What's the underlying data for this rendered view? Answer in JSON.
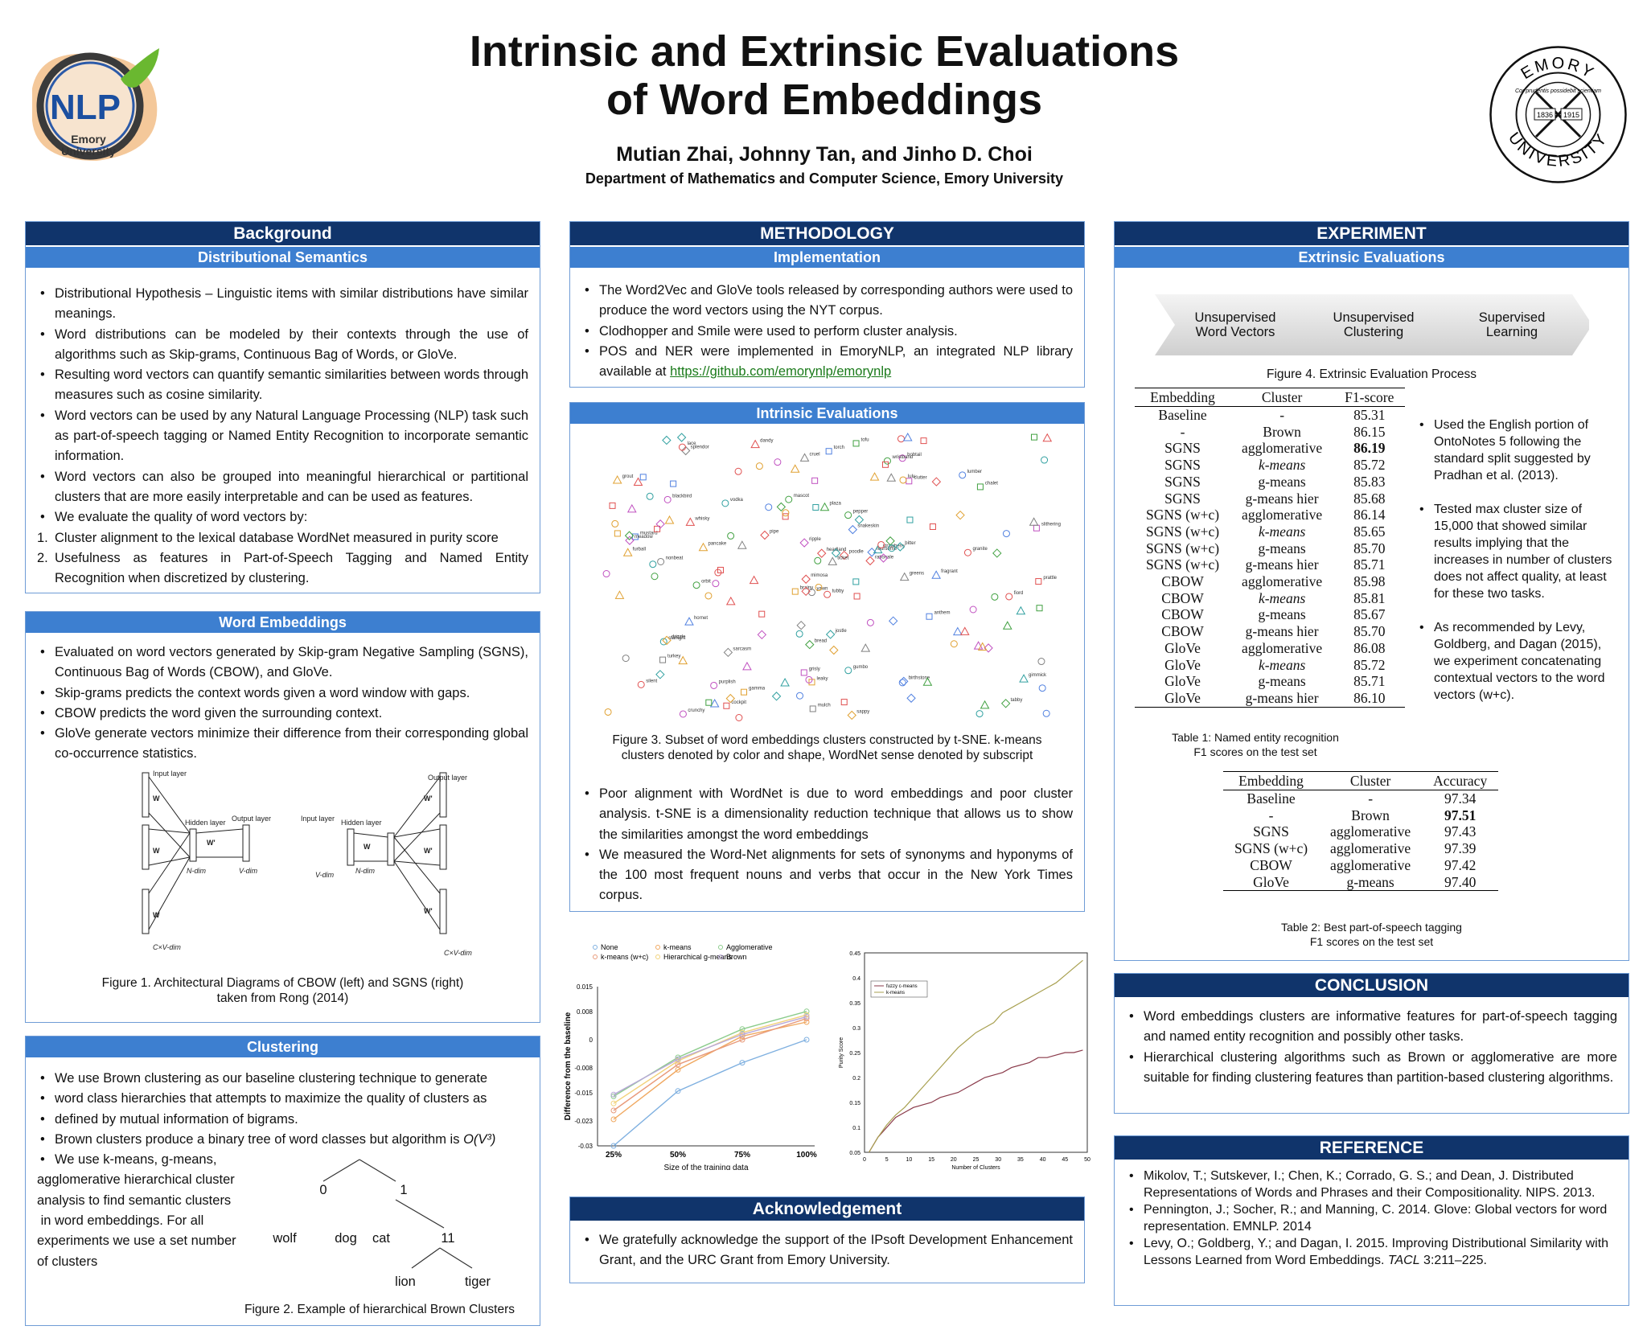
{
  "title_line1": "Intrinsic and Extrinsic Evaluations",
  "title_line2": "of Word Embeddings",
  "authors": "Mutian Zhai, Johnny Tan, and Jinho D. Choi",
  "department": "Department of Mathematics and Computer Science, Emory University",
  "logo_nlp": {
    "text": "NLP",
    "sub1": "Emory",
    "sub2": "University"
  },
  "logo_emory": {
    "top": "EMORY",
    "bottom": "UNIVERSITY",
    "year1": "1836",
    "year2": "1915",
    "motto": "Cor prudentis possidebit scientiam"
  },
  "background": {
    "header": "Background",
    "subheader": "Distributional Semantics",
    "bullets": [
      "Distributional Hypothesis – Linguistic items with similar distributions have similar meanings.",
      "Word distributions can be modeled by their contexts through the use of algorithms such as Skip-grams, Continuous Bag of Words, or GloVe.",
      "Resulting word vectors can quantify semantic similarities between words through measures such as cosine similarity.",
      "Word vectors can be used by any Natural Language Processing (NLP) task such as part-of-speech tagging or Named Entity Recognition to incorporate semantic information.",
      "Word vectors can also be grouped into meaningful hierarchical or partitional clusters that are more easily interpretable and can be used as features.",
      "We evaluate the quality of word vectors by:"
    ],
    "numbered": [
      {
        "num": "1.",
        "text": "Cluster alignment to the lexical database WordNet measured in purity score"
      },
      {
        "num": "2.",
        "text": "Usefulness as features in Part-of-Speech Tagging and Named Entity Recognition when discretized by clustering."
      }
    ]
  },
  "word_embeddings": {
    "header": "Word Embeddings",
    "bullets": [
      "Evaluated on word vectors generated by Skip-gram Negative Sampling (SGNS), Continuous Bag of Words (CBOW), and GloVe.",
      "Skip-grams predicts the context words given a word window with gaps.",
      "CBOW predicts the word given the surrounding context.",
      "GloVe generate vectors minimize their difference from their corresponding global co-occurrence statistics."
    ],
    "diagram_labels": {
      "input_layer": "Input layer",
      "hidden_layer": "Hidden layer",
      "output_layer": "Output layer",
      "ndim": "N-dim",
      "vdim": "V-dim",
      "cvdim": "C×V-dim",
      "w_vn": "W",
      "w_nv": "W'"
    },
    "caption_l1": "Figure 1. Architectural Diagrams of CBOW (left) and SGNS (right)",
    "caption_l2": "taken from Rong (2014)"
  },
  "clustering": {
    "header": "Clustering",
    "bullets": [
      "We use Brown clustering as our baseline clustering technique to generate",
      "word class hierarchies that attempts to maximize the quality of clusters as",
      "defined by mutual information of bigrams."
    ],
    "bullet_brown": "Brown clusters produce a binary tree of word classes but algorithm is",
    "complexity": "O(V³)",
    "kmeans_lines": [
      "We use k-means, g-means,",
      "agglomerative hierarchical cluster",
      "analysis to find semantic clusters",
      " in word embeddings. For all",
      "experiments we use  a set number",
      "of clusters"
    ],
    "tree": {
      "n0": "0",
      "n1": "1",
      "n11": "11",
      "wolf": "wolf",
      "dog": "dog",
      "cat": "cat",
      "lion": "lion",
      "tiger": "tiger"
    },
    "caption": "Figure 2. Example of hierarchical Brown Clusters"
  },
  "methodology": {
    "header": "METHODOLOGY",
    "subheader": "Implementation",
    "bullets": [
      "The Word2Vec and GloVe tools released by corresponding authors were used to produce the word vectors using the NYT corpus.",
      "Clodhopper and Smile were used to perform cluster analysis."
    ],
    "bullet_pos": "POS and NER were implemented in EmoryNLP, an integrated NLP library available at",
    "link": "https://github.com/emorynlp/emorynlp"
  },
  "intrinsic": {
    "subheader": "Intrinsic Evaluations",
    "caption_l1": "Figure 3. Subset of word embeddings clusters constructed by t-SNE. k-means",
    "caption_l2": "clusters denoted by color and shape, WordNet sense denoted by subscript",
    "tsne_words": [
      "tubby",
      "mimosa",
      "foursome",
      "bobtail",
      "clutter",
      "splendor",
      "nonbeat",
      "brainy",
      "crunchy",
      "snakeskin",
      "pipe",
      "purplish",
      "strawberry",
      "blackbird",
      "furball",
      "slithering",
      "grisly",
      "vodka",
      "sarcasm",
      "gimmick",
      "tofu",
      "pancake",
      "cockpit",
      "rationale",
      "leaky",
      "turkey",
      "grout",
      "birthstone",
      "lace",
      "gumbo",
      "torch",
      "mustard",
      "lumber",
      "wristband",
      "headland",
      "bread",
      "anthem",
      "silent",
      "whisky",
      "ripple",
      "poodle",
      "greens",
      "mulch",
      "jostle",
      "sappy",
      "cruel",
      "bitter",
      "ticket",
      "meadow",
      "lulu",
      "orbit",
      "prattle",
      "hornet",
      "gamma",
      "chalet",
      "fiord",
      "plaza",
      "dandy",
      "yawn",
      "mascot",
      "starlight",
      "pepper",
      "fragrant",
      "tabby",
      "granite",
      "drizzle"
    ],
    "bullets": [
      "Poor alignment with WordNet is due to word embeddings and poor cluster analysis. t-SNE is a dimensionality reduction technique that allows us to show the similarities amongst the word embeddings",
      "We measured the Word-Net alignments for sets of synonyms and hyponyms of the 100 most frequent nouns and verbs that occur in the New York Times corpus."
    ]
  },
  "chart_data": [
    {
      "type": "line",
      "xlabel": "Size of the training data",
      "ylabel": "Difference from the baseline",
      "categories": [
        "25%",
        "50%",
        "75%",
        "100%"
      ],
      "ylim": [
        -0.03,
        0.015
      ],
      "yticks": [
        "0.015",
        "0.008",
        "0",
        "-0.008",
        "-0.015",
        "-0.023",
        "-0.03"
      ],
      "legend_position": "top",
      "series": [
        {
          "name": "None",
          "color": "#7fb0e0",
          "values": [
            -0.03,
            -0.0145,
            -0.0065,
            0.0
          ]
        },
        {
          "name": "k-means",
          "color": "#f0a860",
          "values": [
            -0.0225,
            -0.0085,
            0.001,
            0.005
          ]
        },
        {
          "name": "Agglomerative",
          "color": "#8ccc8c",
          "values": [
            -0.016,
            -0.005,
            0.003,
            0.008
          ]
        },
        {
          "name": "k-means (w+c)",
          "color": "#e89a7a",
          "values": [
            -0.02,
            -0.007,
            0.0,
            0.006
          ]
        },
        {
          "name": "Hierarchical g-means",
          "color": "#f2d27a",
          "values": [
            -0.018,
            -0.006,
            0.002,
            0.007
          ]
        },
        {
          "name": "Brown",
          "color": "#b8a8d8",
          "values": [
            -0.0155,
            -0.0055,
            0.0015,
            0.0065
          ]
        }
      ]
    },
    {
      "type": "line",
      "xlabel": "Number of Clusters",
      "ylabel": "Purity Score",
      "xlim": [
        0,
        50
      ],
      "ylim": [
        0.05,
        0.45
      ],
      "xticks": [
        "0",
        "5",
        "10",
        "15",
        "20",
        "25",
        "30",
        "35",
        "40",
        "45",
        "50"
      ],
      "yticks": [
        "0.45",
        "0.4",
        "0.35",
        "0.3",
        "0.25",
        "0.2",
        "0.15",
        "0.1",
        "0.05"
      ],
      "legend_position": "top-left",
      "series": [
        {
          "name": "fuzzy c-means",
          "color": "#8a3a4a",
          "x": [
            1,
            3,
            5,
            7,
            9,
            11,
            13,
            15,
            17,
            19,
            21,
            23,
            25,
            27,
            29,
            31,
            33,
            35,
            37,
            39,
            41,
            43,
            45,
            47,
            49
          ],
          "values": [
            0.05,
            0.08,
            0.1,
            0.12,
            0.13,
            0.14,
            0.145,
            0.15,
            0.16,
            0.165,
            0.17,
            0.18,
            0.19,
            0.2,
            0.205,
            0.21,
            0.22,
            0.225,
            0.23,
            0.24,
            0.24,
            0.245,
            0.25,
            0.25,
            0.255
          ]
        },
        {
          "name": "k-means",
          "color": "#a8a050",
          "x": [
            1,
            3,
            5,
            7,
            9,
            11,
            13,
            15,
            17,
            19,
            21,
            23,
            25,
            27,
            29,
            31,
            33,
            35,
            37,
            39,
            41,
            43,
            45,
            47,
            49
          ],
          "values": [
            0.05,
            0.08,
            0.105,
            0.125,
            0.14,
            0.16,
            0.18,
            0.2,
            0.22,
            0.24,
            0.26,
            0.275,
            0.29,
            0.3,
            0.31,
            0.33,
            0.34,
            0.35,
            0.36,
            0.37,
            0.38,
            0.39,
            0.405,
            0.42,
            0.435
          ]
        }
      ]
    }
  ],
  "acknowledgement": {
    "header": "Acknowledgement",
    "text": "We gratefully acknowledge the support of the IPsoft Development Enhancement Grant, and the URC Grant from Emory University."
  },
  "experiment": {
    "header": "EXPERIMENT",
    "subheader": "Extrinsic Evaluations",
    "flow": [
      [
        "Unsupervised",
        "Word Vectors"
      ],
      [
        "Unsupervised",
        "Clustering"
      ],
      [
        "Supervised",
        "Learning"
      ]
    ],
    "flow_caption": "Figure 4. Extrinsic Evaluation Process",
    "table1": {
      "headers": [
        "Embedding",
        "Cluster",
        "F1-score"
      ],
      "rows": [
        [
          "Baseline",
          "-",
          "85.31"
        ],
        [
          "-",
          "Brown",
          "86.15"
        ],
        [
          "SGNS",
          "agglomerative",
          "86.19"
        ],
        [
          "SGNS",
          "k-means",
          "85.72"
        ],
        [
          "SGNS",
          "g-means",
          "85.83"
        ],
        [
          "SGNS",
          "g-means hier",
          "85.68"
        ],
        [
          "SGNS (w+c)",
          "agglomerative",
          "86.14"
        ],
        [
          "SGNS (w+c)",
          "k-means",
          "85.65"
        ],
        [
          "SGNS (w+c)",
          "g-means",
          "85.70"
        ],
        [
          "SGNS (w+c)",
          "g-means hier",
          "85.71"
        ],
        [
          "CBOW",
          "agglomerative",
          "85.98"
        ],
        [
          "CBOW",
          "k-means",
          "85.81"
        ],
        [
          "CBOW",
          "g-means",
          "85.67"
        ],
        [
          "CBOW",
          "g-means hier",
          "85.70"
        ],
        [
          "GloVe",
          "agglomerative",
          "86.08"
        ],
        [
          "GloVe",
          "k-means",
          "85.72"
        ],
        [
          "GloVe",
          "g-means",
          "85.71"
        ],
        [
          "GloVe",
          "g-means hier",
          "86.10"
        ]
      ],
      "caption_l1": "Table 1: Named entity recognition",
      "caption_l2": "F1 scores on the test set"
    },
    "side_bullets": [
      "Used the English portion of OntoNotes 5 following the standard split suggested by Pradhan et al. (2013).",
      "Tested max cluster size of 15,000 that showed similar results implying that the increases in number of clusters does not affect quality, at least for these two tasks.",
      "As recommended by Levy, Goldberg, and Dagan (2015), we experiment concatenating contextual vectors to the word vectors (w+c)."
    ],
    "table2": {
      "headers": [
        "Embedding",
        "Cluster",
        "Accuracy"
      ],
      "rows": [
        [
          "Baseline",
          "-",
          "97.34"
        ],
        [
          "-",
          "Brown",
          "97.51"
        ],
        [
          "SGNS",
          "agglomerative",
          "97.43"
        ],
        [
          "SGNS (w+c)",
          "agglomerative",
          "97.39"
        ],
        [
          "CBOW",
          "agglomerative",
          "97.42"
        ],
        [
          "GloVe",
          "g-means",
          "97.40"
        ]
      ],
      "caption_l1": "Table 2: Best part-of-speech tagging",
      "caption_l2": "F1 scores on the test set"
    }
  },
  "conclusion": {
    "header": "CONCLUSION",
    "bullets": [
      "Word embeddings clusters are informative features for part-of-speech tagging and named entity recognition and possibly other tasks.",
      "Hierarchical clustering algorithms such as Brown or agglomerative are more suitable for finding clustering features than partition-based clustering algorithms."
    ]
  },
  "reference": {
    "header": "REFERENCE",
    "items": [
      "Mikolov, T.; Sutskever, I.; Chen, K.; Corrado, G. S.; and Dean, J. Distributed Representations of Words and Phrases and their Compositionality. NIPS. 2013.",
      "Pennington, J.; Socher, R.; and Manning, C.  2014.  Glove: Global vectors for word representation.  EMNLP. 2014"
    ],
    "item3_text": "Levy, O.; Goldberg, Y.; and Dagan, I. 2015. Improving Distributional Similarity with Lessons Learned from Word Embeddings.",
    "item3_venue": "TACL",
    "item3_pages": "3:211–225."
  }
}
